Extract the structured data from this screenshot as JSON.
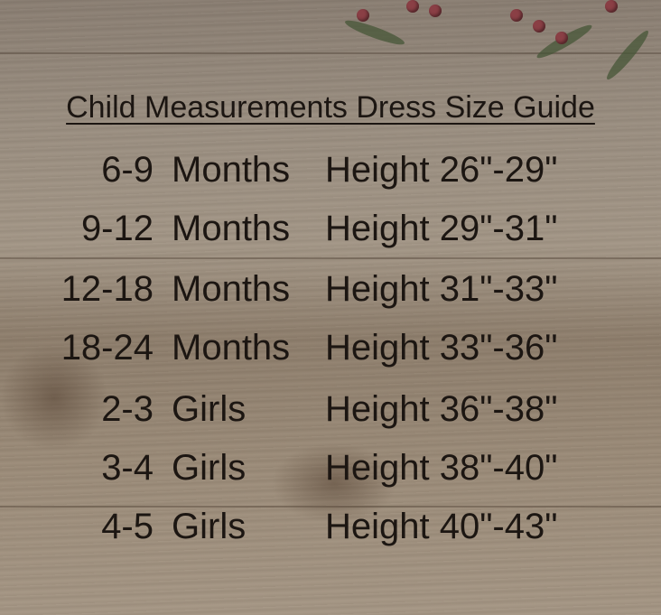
{
  "title": "Child Measurements Dress Size Guide",
  "rows": [
    {
      "size": "6-9",
      "unit": "Months",
      "height": "Height 26\"-29\""
    },
    {
      "size": "9-12",
      "unit": "Months",
      "height": "Height 29\"-31\""
    },
    {
      "size": "12-18",
      "unit": "Months",
      "height": "Height 31\"-33\""
    },
    {
      "size": "18-24",
      "unit": "Months",
      "height": "Height 33\"-36\""
    },
    {
      "size": "2-3",
      "unit": "Girls",
      "height": "Height 36\"-38\""
    },
    {
      "size": "3-4",
      "unit": "Girls",
      "height": "Height 38\"-40\""
    },
    {
      "size": "4-5",
      "unit": "Girls",
      "height": "Height 40\"-43\""
    }
  ],
  "colors": {
    "text": "#1c1612",
    "berry": "#8a3f45"
  }
}
